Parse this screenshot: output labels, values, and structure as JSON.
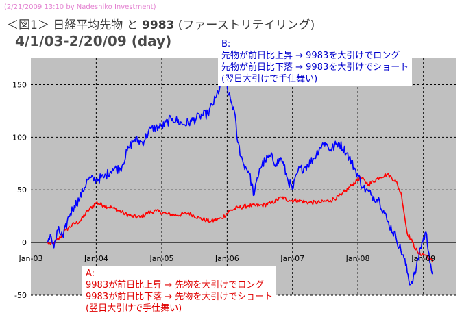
{
  "watermark": "(2/21/2009 13:10 by Nadeshiko Investment)",
  "title": {
    "prefix": "＜図1＞",
    "main": "日経平均先物 と",
    "code": "9983",
    "suffix": "(ファーストリテイリング)",
    "period": "4/1/03-2/20/09 (day)"
  },
  "annotations": {
    "b": {
      "label": "B:",
      "line1": "先物が前日比上昇 → 9983を大引けでロング",
      "line2": "先物が前日比下落 → 9983を大引けでショート",
      "line3": "(翌日大引けで手仕舞い)"
    },
    "a": {
      "label": "A:",
      "line1": "9983が前日比上昇 → 先物を大引けでロング",
      "line2": "9983が前日比下落 → 先物を大引けでショート",
      "line3": "(翌日大引けで手仕舞い)"
    }
  },
  "colors": {
    "series_a": "#ff0000",
    "series_b": "#0000ff",
    "plot_background": "#c0c0c0",
    "grid": "#000000"
  },
  "chart_data": {
    "type": "line",
    "title": "",
    "xlabel": "",
    "ylabel": "",
    "x_ticks": [
      "Jan-03",
      "Jan-04",
      "Jan-05",
      "Jan-06",
      "Jan-07",
      "Jan-08",
      "Jan-09"
    ],
    "y_ticks": [
      -50,
      0,
      50,
      100,
      150
    ],
    "ylim": [
      -50,
      175
    ],
    "xlim": [
      "2003-01-01",
      "2009-07-01"
    ],
    "grid": true,
    "series": [
      {
        "key": "B",
        "color": "#0000ff",
        "points": [
          [
            "2003-04-01",
            0
          ],
          [
            "2003-04-20",
            8
          ],
          [
            "2003-05-10",
            -5
          ],
          [
            "2003-06-01",
            12
          ],
          [
            "2003-07-01",
            5
          ],
          [
            "2003-08-01",
            25
          ],
          [
            "2003-09-01",
            35
          ],
          [
            "2003-10-01",
            42
          ],
          [
            "2003-11-15",
            60
          ],
          [
            "2004-01-01",
            60
          ],
          [
            "2004-02-15",
            62
          ],
          [
            "2004-04-01",
            70
          ],
          [
            "2004-05-15",
            70
          ],
          [
            "2004-07-01",
            90
          ],
          [
            "2004-08-01",
            98
          ],
          [
            "2004-09-15",
            95
          ],
          [
            "2004-11-01",
            108
          ],
          [
            "2005-01-01",
            110
          ],
          [
            "2005-03-01",
            118
          ],
          [
            "2005-05-01",
            112
          ],
          [
            "2005-06-15",
            115
          ],
          [
            "2005-08-01",
            120
          ],
          [
            "2005-09-15",
            122
          ],
          [
            "2005-11-01",
            138
          ],
          [
            "2005-12-20",
            160
          ],
          [
            "2006-01-10",
            140
          ],
          [
            "2006-02-10",
            125
          ],
          [
            "2006-03-01",
            95
          ],
          [
            "2006-04-01",
            75
          ],
          [
            "2006-05-01",
            68
          ],
          [
            "2006-06-01",
            45
          ],
          [
            "2006-07-01",
            70
          ],
          [
            "2006-08-01",
            78
          ],
          [
            "2006-09-01",
            82
          ],
          [
            "2006-10-01",
            75
          ],
          [
            "2006-11-01",
            80
          ],
          [
            "2006-12-01",
            62
          ],
          [
            "2007-01-01",
            50
          ],
          [
            "2007-02-01",
            68
          ],
          [
            "2007-03-15",
            72
          ],
          [
            "2007-05-01",
            80
          ],
          [
            "2007-06-01",
            90
          ],
          [
            "2007-07-01",
            95
          ],
          [
            "2007-08-01",
            88
          ],
          [
            "2007-09-15",
            95
          ],
          [
            "2007-11-01",
            85
          ],
          [
            "2007-12-15",
            70
          ],
          [
            "2008-02-01",
            52
          ],
          [
            "2008-03-15",
            45
          ],
          [
            "2008-05-01",
            40
          ],
          [
            "2008-06-15",
            20
          ],
          [
            "2008-08-01",
            5
          ],
          [
            "2008-09-15",
            -15
          ],
          [
            "2008-10-20",
            -40
          ],
          [
            "2008-11-15",
            -30
          ],
          [
            "2008-12-15",
            -5
          ],
          [
            "2009-01-15",
            10
          ],
          [
            "2009-02-01",
            -10
          ],
          [
            "2009-02-20",
            -30
          ]
        ]
      },
      {
        "key": "A",
        "color": "#ff0000",
        "points": [
          [
            "2003-04-01",
            0
          ],
          [
            "2003-04-20",
            -2
          ],
          [
            "2003-05-15",
            0
          ],
          [
            "2003-06-15",
            5
          ],
          [
            "2003-07-15",
            12
          ],
          [
            "2003-09-01",
            18
          ],
          [
            "2003-10-01",
            20
          ],
          [
            "2003-11-15",
            30
          ],
          [
            "2004-01-01",
            38
          ],
          [
            "2004-02-15",
            35
          ],
          [
            "2004-04-01",
            33
          ],
          [
            "2004-06-01",
            28
          ],
          [
            "2004-07-15",
            25
          ],
          [
            "2004-09-01",
            24
          ],
          [
            "2004-10-15",
            28
          ],
          [
            "2004-12-01",
            30
          ],
          [
            "2005-02-01",
            27
          ],
          [
            "2005-04-01",
            26
          ],
          [
            "2005-06-01",
            28
          ],
          [
            "2005-08-01",
            23
          ],
          [
            "2005-10-01",
            20
          ],
          [
            "2005-12-01",
            23
          ],
          [
            "2006-01-15",
            30
          ],
          [
            "2006-03-01",
            33
          ],
          [
            "2006-05-01",
            35
          ],
          [
            "2006-07-01",
            35
          ],
          [
            "2006-09-01",
            37
          ],
          [
            "2006-11-01",
            43
          ],
          [
            "2006-12-15",
            40
          ],
          [
            "2007-02-01",
            40
          ],
          [
            "2007-04-01",
            38
          ],
          [
            "2007-06-01",
            38
          ],
          [
            "2007-08-01",
            40
          ],
          [
            "2007-10-01",
            45
          ],
          [
            "2007-12-01",
            55
          ],
          [
            "2008-01-15",
            62
          ],
          [
            "2008-03-01",
            55
          ],
          [
            "2008-05-01",
            62
          ],
          [
            "2008-06-15",
            65
          ],
          [
            "2008-08-01",
            58
          ],
          [
            "2008-09-01",
            45
          ],
          [
            "2008-10-01",
            10
          ],
          [
            "2008-11-01",
            0
          ],
          [
            "2008-12-01",
            -10
          ],
          [
            "2009-01-15",
            -12
          ],
          [
            "2009-02-20",
            -18
          ]
        ]
      }
    ]
  }
}
